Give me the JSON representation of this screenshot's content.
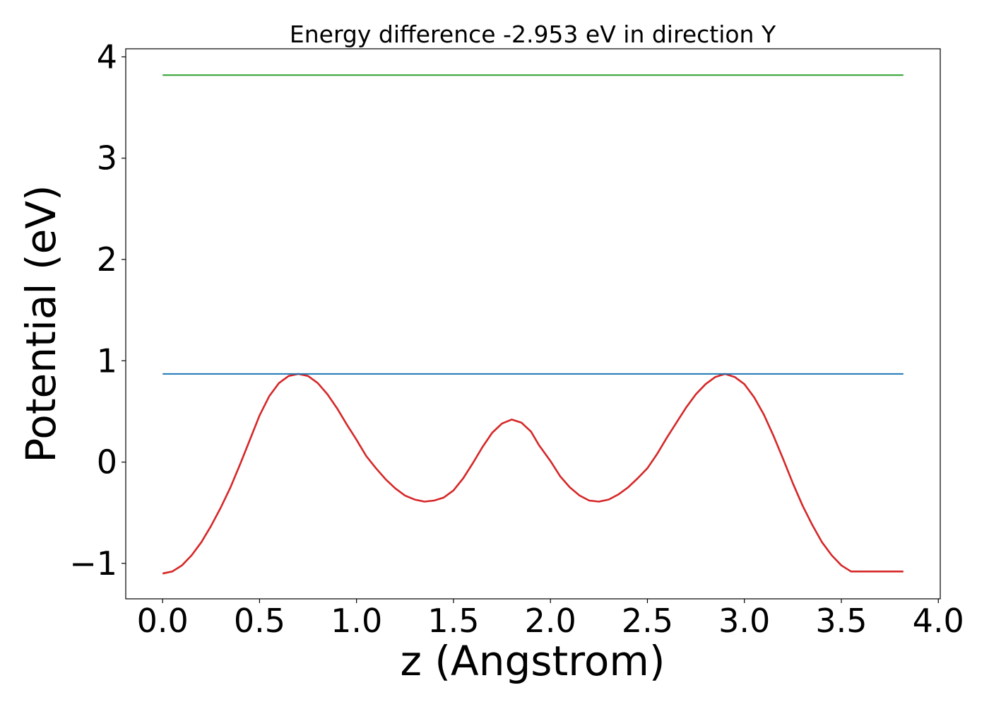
{
  "chart_data": {
    "type": "line",
    "title": "Energy difference -2.953 eV in direction Y",
    "xlabel": "z (Angstrom)",
    "ylabel": "Potential (eV)",
    "xlim": [
      -0.19,
      4.01
    ],
    "ylim": [
      -1.35,
      4.08
    ],
    "xticks": [
      0.0,
      0.5,
      1.0,
      1.5,
      2.0,
      2.5,
      3.0,
      3.5,
      4.0
    ],
    "xtick_labels": [
      "0.0",
      "0.5",
      "1.0",
      "1.5",
      "2.0",
      "2.5",
      "3.0",
      "3.5",
      "4.0"
    ],
    "yticks": [
      -1,
      0,
      1,
      2,
      3,
      4
    ],
    "ytick_labels": [
      "−1",
      "0",
      "1",
      "2",
      "3",
      "4"
    ],
    "grid": false,
    "series": [
      {
        "color": "#d62728",
        "x": [
          0.0,
          0.05,
          0.1,
          0.15,
          0.2,
          0.25,
          0.3,
          0.35,
          0.4,
          0.45,
          0.5,
          0.55,
          0.6,
          0.65,
          0.7,
          0.75,
          0.8,
          0.85,
          0.9,
          0.95,
          1.0,
          1.05,
          1.1,
          1.15,
          1.2,
          1.25,
          1.3,
          1.35,
          1.4,
          1.45,
          1.5,
          1.55,
          1.6,
          1.65,
          1.7,
          1.75,
          1.8,
          1.85,
          1.9,
          1.94,
          2.0,
          2.05,
          2.1,
          2.15,
          2.2,
          2.25,
          2.3,
          2.35,
          2.4,
          2.45,
          2.5,
          2.55,
          2.6,
          2.65,
          2.7,
          2.75,
          2.8,
          2.85,
          2.9,
          2.95,
          3.0,
          3.05,
          3.1,
          3.15,
          3.2,
          3.25,
          3.3,
          3.35,
          3.4,
          3.45,
          3.5,
          3.55,
          3.6,
          3.65,
          3.7,
          3.75,
          3.82
        ],
        "y": [
          -1.1,
          -1.08,
          -1.02,
          -0.92,
          -0.79,
          -0.63,
          -0.45,
          -0.25,
          -0.02,
          0.22,
          0.46,
          0.65,
          0.78,
          0.85,
          0.87,
          0.85,
          0.78,
          0.67,
          0.53,
          0.37,
          0.22,
          0.06,
          -0.06,
          -0.17,
          -0.26,
          -0.33,
          -0.37,
          -0.39,
          -0.38,
          -0.35,
          -0.28,
          -0.16,
          -0.01,
          0.15,
          0.29,
          0.38,
          0.42,
          0.39,
          0.3,
          0.17,
          0.01,
          -0.14,
          -0.25,
          -0.33,
          -0.38,
          -0.39,
          -0.37,
          -0.32,
          -0.25,
          -0.16,
          -0.06,
          0.08,
          0.24,
          0.39,
          0.54,
          0.67,
          0.77,
          0.84,
          0.87,
          0.84,
          0.77,
          0.64,
          0.47,
          0.26,
          0.03,
          -0.21,
          -0.43,
          -0.62,
          -0.79,
          -0.92,
          -1.02,
          -1.08,
          -1.08,
          -1.08,
          -1.08,
          -1.08,
          -1.08
        ]
      },
      {
        "color": "#1f77b4",
        "x": [
          0.0,
          3.82
        ],
        "y": [
          0.87,
          0.87
        ]
      },
      {
        "color": "#2ca02c",
        "x": [
          0.0,
          3.82
        ],
        "y": [
          3.82,
          3.82
        ]
      }
    ]
  }
}
